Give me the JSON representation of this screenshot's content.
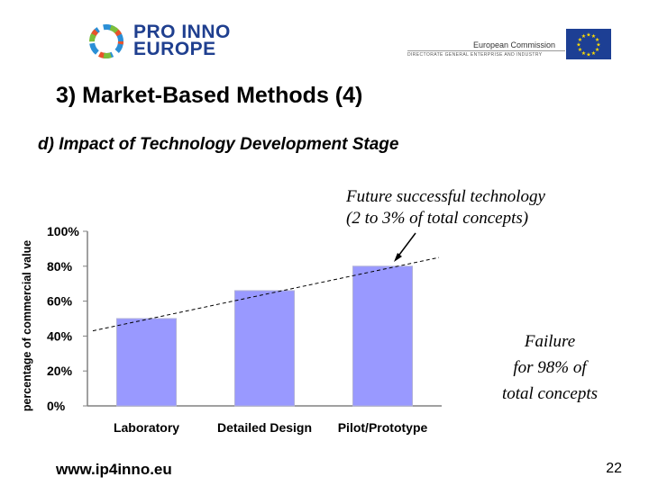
{
  "header": {
    "logo_line1": "PRO INNO",
    "logo_line2": "EUROPE",
    "commission_name": "European Commission",
    "commission_dg": "DIRECTORATE GENERAL ENTERPRISE AND INDUSTRY"
  },
  "slide": {
    "title": "3) Market-Based Methods (4)",
    "subtitle": "d) Impact of Technology Development Stage",
    "annotation_future_line1": "Future successful technology",
    "annotation_future_line2": "(2 to 3% of total concepts)",
    "annotation_failure_line1": "Failure",
    "annotation_failure_line2": "for 98% of",
    "annotation_failure_line3": "total concepts"
  },
  "footer": {
    "url": "www.ip4inno.eu",
    "page_number": "22"
  },
  "colors": {
    "bar_fill": "#9999ff",
    "bar_stroke": "#000000",
    "logo_text": "#1f3f8f",
    "eu_flag": "#1d3f94",
    "eu_stars": "#ffdd00"
  },
  "chart_data": {
    "type": "bar",
    "categories": [
      "Laboratory",
      "Detailed Design",
      "Pilot/Prototype"
    ],
    "values": [
      50,
      66,
      80
    ],
    "ylabel": "percentage of commercial value",
    "ylim": [
      0,
      100
    ],
    "yticks": [
      "0%",
      "20%",
      "40%",
      "60%",
      "80%",
      "100%"
    ],
    "trendline": {
      "style": "dashed",
      "y_start": 43,
      "y_end": 85
    },
    "grid": false
  }
}
